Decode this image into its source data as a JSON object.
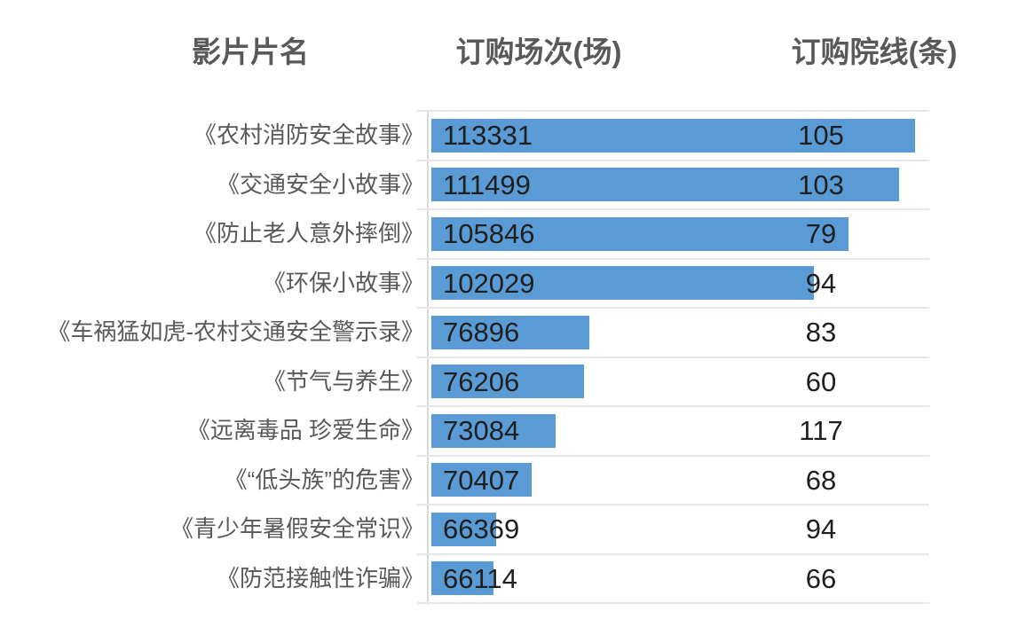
{
  "header": {
    "film_column": "影片片名",
    "sessions_column": "订购场次(场)",
    "cinemas_column": "订购院线(条)"
  },
  "chart_data": {
    "type": "bar",
    "orientation": "horizontal",
    "title": "",
    "columns": [
      "影片片名",
      "订购场次(场)",
      "订购院线(条)"
    ],
    "categories": [
      "《农村消防安全故事》",
      "《交通安全小故事》",
      "《防止老人意外摔倒》",
      "《环保小故事》",
      "《车祸猛如虎-农村交通安全警示录》",
      "《节气与养生》",
      "《远离毒品 珍爱生命》",
      "《“低头族”的危害》",
      "《青少年暑假安全常识》",
      "《防范接触性诈骗》"
    ],
    "series": [
      {
        "name": "订购场次(场)",
        "values": [
          113331,
          111499,
          105846,
          102029,
          76896,
          76206,
          73084,
          70407,
          66369,
          66114
        ],
        "rendering": "data-bar with value label inside at left"
      },
      {
        "name": "订购院线(条)",
        "values": [
          105,
          103,
          79,
          94,
          83,
          60,
          117,
          68,
          94,
          66
        ],
        "rendering": "text label only, fixed column position"
      }
    ],
    "bar_value_mapping": {
      "note": "bar width scales linearly between min and max of series 0",
      "min_value": 66114,
      "max_value": 113331
    },
    "grid": "horizontal row separators only",
    "legend": "none"
  },
  "colors": {
    "bar_fill": "#5b9bd5",
    "header_text": "#595959",
    "category_text": "#595959",
    "value_text": "#1f1f1f",
    "gridline": "#e7e7e7",
    "axis_line": "#d9d9d9"
  }
}
